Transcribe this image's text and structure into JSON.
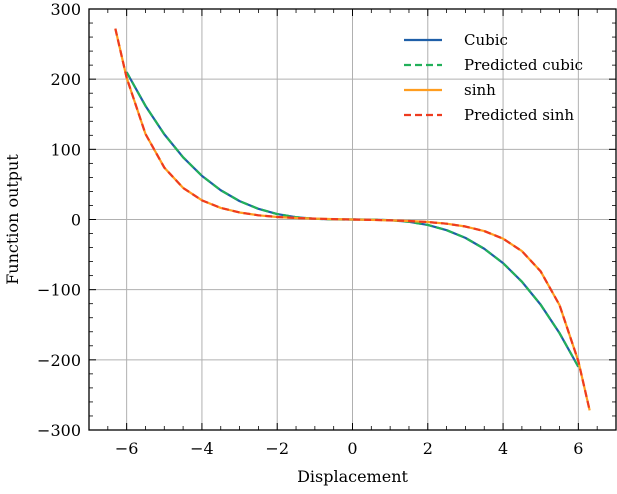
{
  "chart_data": {
    "type": "line",
    "xlabel": "Displacement",
    "ylabel": "Function output",
    "xlim": [
      -7,
      7
    ],
    "ylim": [
      -300,
      300
    ],
    "x_ticks": [
      -6,
      -4,
      -2,
      0,
      2,
      4,
      6
    ],
    "y_ticks": [
      -300,
      -200,
      -100,
      0,
      100,
      200,
      300
    ],
    "x_tick_labels": [
      "−6",
      "−4",
      "−2",
      "0",
      "2",
      "4",
      "6"
    ],
    "y_tick_labels": [
      "−300",
      "−200",
      "−100",
      "0",
      "100",
      "200",
      "300"
    ],
    "grid": true,
    "legend_position": "top-right",
    "series": [
      {
        "name": "Cubic",
        "color": "#1f5fa8",
        "style": "solid",
        "x": [
          -6,
          -5.5,
          -5,
          -4.5,
          -4,
          -3.5,
          -3,
          -2.5,
          -2,
          -1.5,
          -1,
          -0.5,
          0,
          0.5,
          1,
          1.5,
          2,
          2.5,
          3,
          3.5,
          4,
          4.5,
          5,
          5.5,
          6
        ],
        "y": [
          210,
          162,
          121.5,
          88.6,
          62.2,
          41.7,
          26.2,
          15.2,
          7.8,
          3.3,
          1,
          0.1,
          0,
          -0.1,
          -1,
          -3.3,
          -7.8,
          -15.2,
          -26.2,
          -41.7,
          -62.2,
          -88.6,
          -121.5,
          -162,
          -210
        ]
      },
      {
        "name": "Predicted cubic",
        "color": "#22b05a",
        "style": "dashed",
        "x": [
          -6,
          -5.5,
          -5,
          -4.5,
          -4,
          -3.5,
          -3,
          -2.5,
          -2,
          -1.5,
          -1,
          -0.5,
          0,
          0.5,
          1,
          1.5,
          2,
          2.5,
          3,
          3.5,
          4,
          4.5,
          5,
          5.5,
          6
        ],
        "y": [
          210,
          162,
          121.5,
          88.6,
          62.2,
          41.7,
          26.2,
          15.2,
          7.8,
          3.3,
          1,
          0.1,
          0,
          -0.1,
          -1,
          -3.3,
          -7.8,
          -15.2,
          -26.2,
          -41.7,
          -62.2,
          -88.6,
          -121.5,
          -162,
          -210
        ]
      },
      {
        "name": "sinh",
        "color": "#ff9d1f",
        "style": "solid",
        "x": [
          -6.3,
          -6,
          -5.5,
          -5,
          -4.5,
          -4,
          -3.5,
          -3,
          -2.5,
          -2,
          -1.5,
          -1,
          -0.5,
          0,
          0.5,
          1,
          1.5,
          2,
          2.5,
          3,
          3.5,
          4,
          4.5,
          5,
          5.5,
          6,
          6.3
        ],
        "y": [
          272,
          202,
          122,
          74,
          45,
          27.3,
          16.5,
          10,
          6,
          3.6,
          2.1,
          1.2,
          0.5,
          0,
          -0.5,
          -1.2,
          -2.1,
          -3.6,
          -6,
          -10,
          -16.5,
          -27.3,
          -45,
          -74,
          -122,
          -202,
          -272
        ]
      },
      {
        "name": "Predicted sinh",
        "color": "#ee3b1f",
        "style": "dashed",
        "x": [
          -6.3,
          -6,
          -5.5,
          -5,
          -4.5,
          -4,
          -3.5,
          -3,
          -2.5,
          -2,
          -1.5,
          -1,
          -0.5,
          0,
          0.5,
          1,
          1.5,
          2,
          2.5,
          3,
          3.5,
          4,
          4.5,
          5,
          5.5,
          6,
          6.3
        ],
        "y": [
          272,
          202,
          122,
          74,
          45,
          27.3,
          16.5,
          10,
          6,
          3.6,
          2.1,
          1.2,
          0.5,
          0,
          -0.5,
          -1.2,
          -2.1,
          -3.6,
          -6,
          -10,
          -16.5,
          -27.3,
          -45,
          -74,
          -122,
          -202,
          -272
        ]
      }
    ]
  }
}
